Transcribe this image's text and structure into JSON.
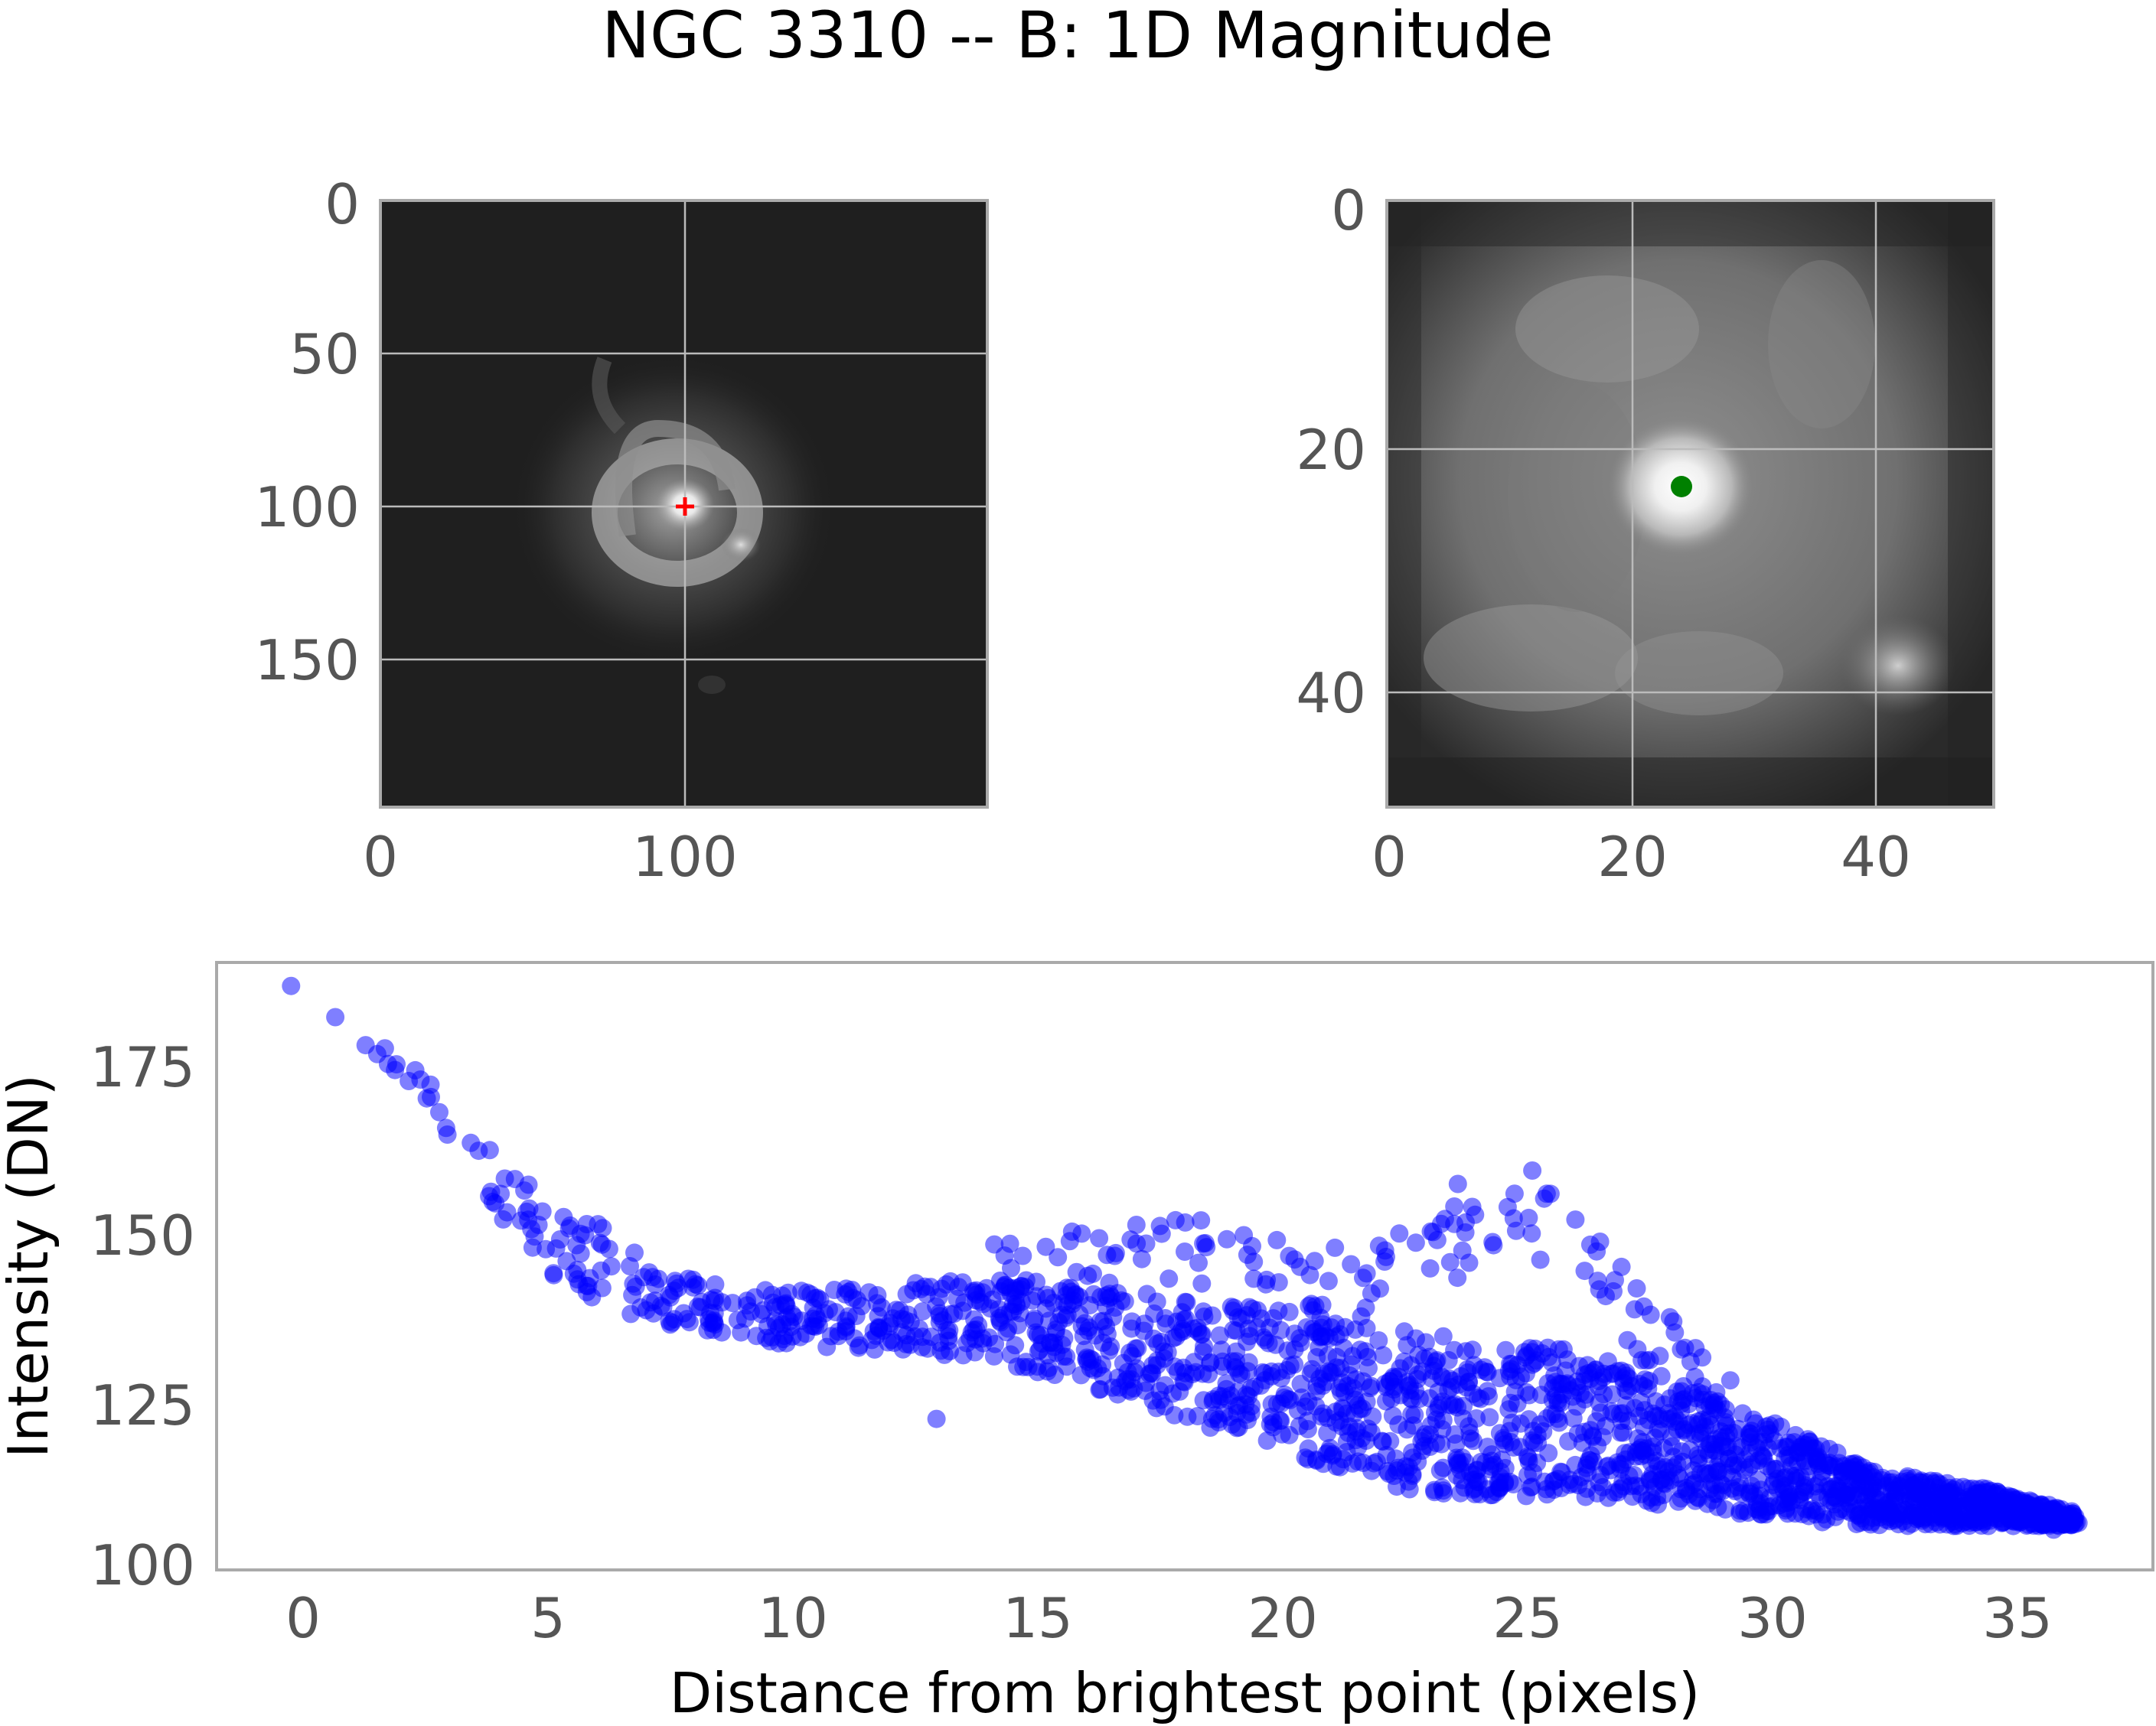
{
  "figure": {
    "title": "NGC 3310 -- B: 1D Magnitude"
  },
  "colors": {
    "scatter_point": "#0000ff",
    "center_marker": "#ff0000",
    "peak_marker": "#008000",
    "grid": "#bbbbbb",
    "frame": "#aaaaaa",
    "tick_text": "#555555"
  },
  "chart_data": [
    {
      "type": "heatmap",
      "description_role": "full galaxy image (grayscale)",
      "x_ticks": [
        "0",
        "100"
      ],
      "y_ticks": [
        "0",
        "50",
        "100",
        "150"
      ],
      "xlim": [
        0,
        200
      ],
      "ylim": [
        200,
        0
      ],
      "grid": true,
      "marker": {
        "shape": "plus",
        "color": "red",
        "x": 100,
        "y": 100
      }
    },
    {
      "type": "heatmap",
      "description_role": "zoomed cutout (grayscale)",
      "x_ticks": [
        "0",
        "20",
        "40"
      ],
      "y_ticks": [
        "0",
        "20",
        "40"
      ],
      "xlim": [
        0,
        50
      ],
      "ylim": [
        50,
        0
      ],
      "grid": true,
      "marker": {
        "shape": "dot",
        "color": "green",
        "x": 24,
        "y": 23
      }
    },
    {
      "type": "scatter",
      "xlabel": "Distance from brightest point (pixels)",
      "ylabel": "Intensity (DN)",
      "x_ticks": [
        "0",
        "5",
        "10",
        "15",
        "20",
        "25",
        "30",
        "35"
      ],
      "y_ticks": [
        "100",
        "125",
        "150",
        "175"
      ],
      "xlim": [
        -1.5,
        37.5
      ],
      "ylim": [
        99.5,
        190
      ],
      "grid": false,
      "trend_x": [
        0,
        1,
        2,
        3,
        4,
        5,
        6,
        7,
        8,
        10,
        12,
        14,
        16,
        18,
        20,
        22,
        24,
        26,
        28,
        30,
        32,
        34,
        36
      ],
      "trend_y": [
        186,
        183,
        176,
        168,
        158,
        150,
        146,
        142,
        139,
        137,
        137,
        137,
        134,
        131,
        127,
        124,
        122,
        121,
        118,
        114,
        110,
        109,
        107
      ],
      "spread": [
        0,
        2,
        3,
        4,
        5,
        6,
        6,
        5,
        4,
        4,
        5,
        6,
        7,
        9,
        11,
        12,
        12,
        11,
        9,
        7,
        4,
        3,
        1
      ],
      "excursion_x": [
        14,
        16,
        18,
        20,
        22,
        23,
        24,
        25,
        26,
        27,
        28,
        29
      ],
      "excursion_y": [
        148,
        151,
        152,
        150,
        148,
        154,
        156,
        158,
        152,
        144,
        136,
        130
      ],
      "outliers": [
        {
          "x": 0,
          "y": 186.5
        },
        {
          "x": 13,
          "y": 122
        },
        {
          "x": 36,
          "y": 106.5
        },
        {
          "x": 35.5,
          "y": 105.5
        },
        {
          "x": 25,
          "y": 159
        },
        {
          "x": 23.5,
          "y": 157
        }
      ]
    }
  ]
}
